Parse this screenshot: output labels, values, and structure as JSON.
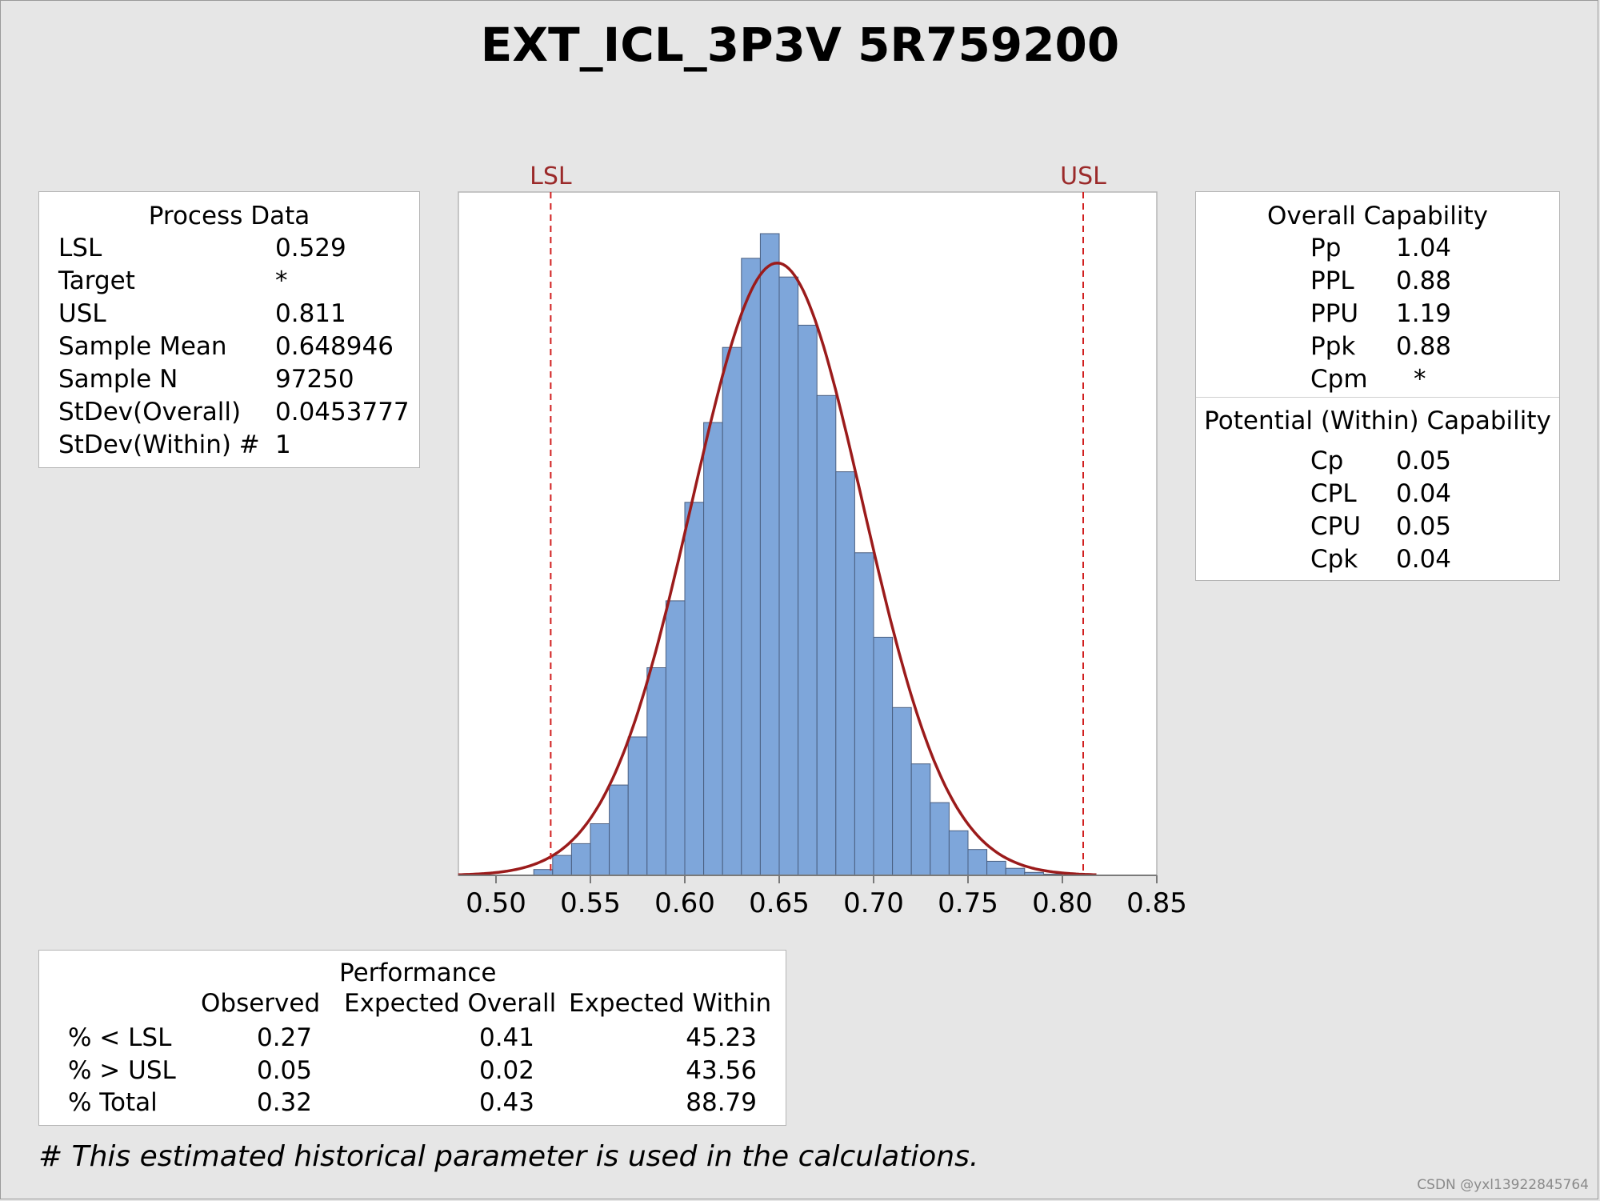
{
  "title": "EXT_ICL_3P3V 5R759200",
  "process_data": {
    "header": "Process Data",
    "rows": [
      {
        "label": "LSL",
        "value": "0.529"
      },
      {
        "label": "Target",
        "value": "*"
      },
      {
        "label": "USL",
        "value": "0.811"
      },
      {
        "label": "Sample Mean",
        "value": "0.648946"
      },
      {
        "label": "Sample N",
        "value": "97250"
      },
      {
        "label": "StDev(Overall)",
        "value": "0.0453777"
      },
      {
        "label": "StDev(Within) #",
        "value": "1"
      }
    ]
  },
  "overall_capability": {
    "header": "Overall Capability",
    "rows": [
      {
        "label": "Pp",
        "value": "1.04"
      },
      {
        "label": "PPL",
        "value": "0.88"
      },
      {
        "label": "PPU",
        "value": "1.19"
      },
      {
        "label": "Ppk",
        "value": "0.88"
      },
      {
        "label": "Cpm",
        "value": "*"
      }
    ]
  },
  "potential_capability": {
    "header": "Potential (Within) Capability",
    "rows": [
      {
        "label": "Cp",
        "value": "0.05"
      },
      {
        "label": "CPL",
        "value": "0.04"
      },
      {
        "label": "CPU",
        "value": "0.05"
      },
      {
        "label": "Cpk",
        "value": "0.04"
      }
    ]
  },
  "performance": {
    "header": "Performance",
    "columns": [
      "Observed",
      "Expected Overall",
      "Expected Within"
    ],
    "rows": [
      {
        "label": "% < LSL",
        "values": [
          "0.27",
          "0.41",
          "45.23"
        ]
      },
      {
        "label": "% > USL",
        "values": [
          "0.05",
          "0.02",
          "43.56"
        ]
      },
      {
        "label": "% Total",
        "values": [
          "0.32",
          "0.43",
          "88.79"
        ]
      }
    ]
  },
  "footnote": "# This estimated historical parameter is used in the calculations.",
  "watermark": "CSDN @yxl13922845764",
  "colors": {
    "bar_fill": "#7ea6da",
    "bar_stroke": "#4a5f80",
    "curve": "#9b1b1b",
    "spec_line": "#d11f1f",
    "spec_label": "#9b2a2a"
  },
  "chart_data": {
    "type": "bar",
    "title": "EXT_ICL_3P3V 5R759200",
    "bin_width": 0.01,
    "bins": [
      {
        "x": 0.525,
        "y": 0.5
      },
      {
        "x": 0.535,
        "y": 1.7
      },
      {
        "x": 0.545,
        "y": 2.7
      },
      {
        "x": 0.555,
        "y": 4.4
      },
      {
        "x": 0.565,
        "y": 7.7
      },
      {
        "x": 0.575,
        "y": 11.8
      },
      {
        "x": 0.585,
        "y": 17.7
      },
      {
        "x": 0.595,
        "y": 23.4
      },
      {
        "x": 0.605,
        "y": 31.8
      },
      {
        "x": 0.615,
        "y": 38.6
      },
      {
        "x": 0.625,
        "y": 45.0
      },
      {
        "x": 0.635,
        "y": 52.6
      },
      {
        "x": 0.645,
        "y": 54.7
      },
      {
        "x": 0.655,
        "y": 51.0
      },
      {
        "x": 0.665,
        "y": 46.9
      },
      {
        "x": 0.675,
        "y": 40.9
      },
      {
        "x": 0.685,
        "y": 34.4
      },
      {
        "x": 0.695,
        "y": 27.5
      },
      {
        "x": 0.705,
        "y": 20.3
      },
      {
        "x": 0.715,
        "y": 14.3
      },
      {
        "x": 0.725,
        "y": 9.5
      },
      {
        "x": 0.735,
        "y": 6.2
      },
      {
        "x": 0.745,
        "y": 3.8
      },
      {
        "x": 0.755,
        "y": 2.2
      },
      {
        "x": 0.765,
        "y": 1.2
      },
      {
        "x": 0.775,
        "y": 0.6
      },
      {
        "x": 0.785,
        "y": 0.25
      },
      {
        "x": 0.795,
        "y": 0.1
      }
    ],
    "fit": {
      "type": "normal",
      "mean": 0.648946,
      "stdev": 0.0453777
    },
    "xlim": [
      0.48,
      0.85
    ],
    "ylim": [
      0,
      60
    ],
    "x_ticks": [
      "0.50",
      "0.55",
      "0.60",
      "0.65",
      "0.70",
      "0.75",
      "0.80",
      "0.85"
    ],
    "spec_limits": [
      {
        "label": "LSL",
        "value": 0.529
      },
      {
        "label": "USL",
        "value": 0.811
      }
    ],
    "xlabel": "",
    "ylabel": ""
  }
}
